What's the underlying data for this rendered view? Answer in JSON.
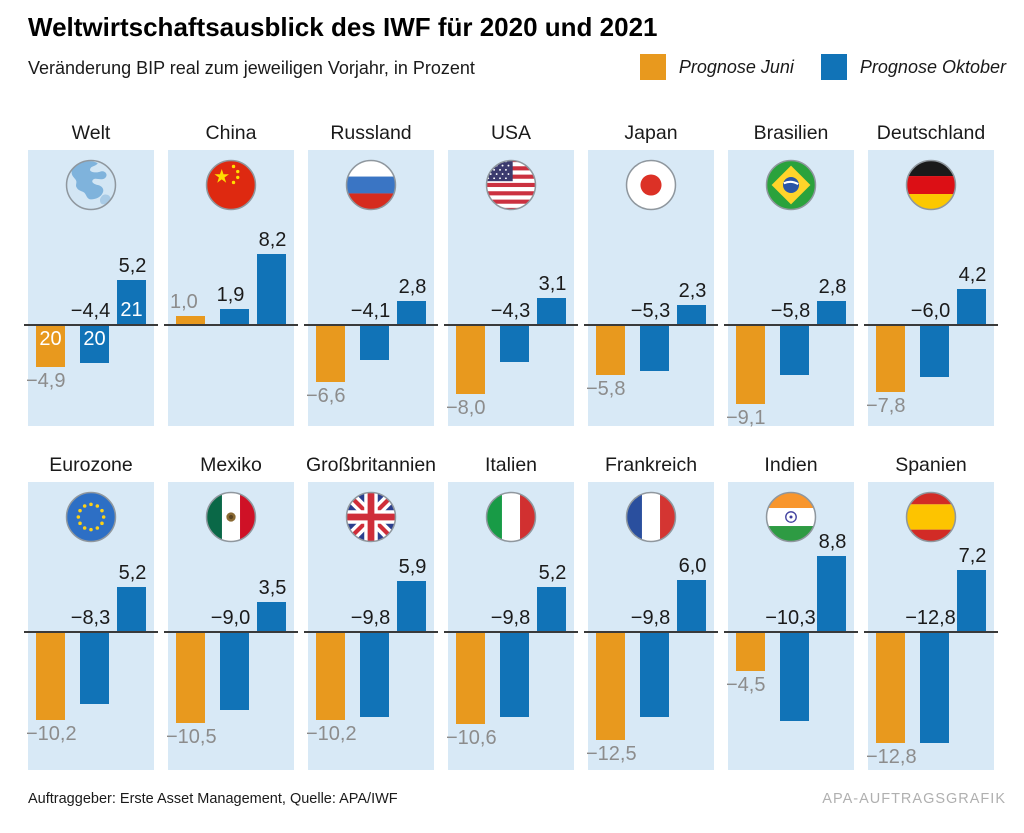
{
  "header": {
    "title": "Weltwirtschaftsausblick des IWF für 2020 und 2021",
    "subtitle": "Veränderung BIP real zum jeweiligen Vorjahr, in Prozent",
    "legend": [
      {
        "label": "Prognose Juni",
        "color": "#e8991e"
      },
      {
        "label": "Prognose Oktober",
        "color": "#1173b7"
      }
    ]
  },
  "footer": {
    "left": "Auftraggeber: Erste Asset Management, Quelle: APA/IWF",
    "right": "APA-AUFTRAGSGRAFIK"
  },
  "colors": {
    "june": "#e8991e",
    "october": "#1173b7",
    "panel_bg": "#d8e9f6",
    "label_gray": "#8c8c8c",
    "label_dark": "#1a1a1a",
    "baseline": "#3a3a3a"
  },
  "chart_data": {
    "type": "bar",
    "title": "Weltwirtschaftsausblick des IWF für 2020 und 2021",
    "ylabel": "Veränderung BIP real zum jeweiligen Vorjahr, in Prozent",
    "ylim": [
      -13.5,
      9.5
    ],
    "grid": false,
    "legend_position": "top-right",
    "series": [
      {
        "name": "Prognose Juni",
        "year": "2020",
        "color": "#e8991e"
      },
      {
        "name": "Prognose Oktober",
        "year": "2020",
        "color": "#1173b7"
      },
      {
        "name": "Prognose Oktober",
        "year": "2021",
        "color": "#1173b7"
      }
    ],
    "year_bar_labels": [
      "20",
      "20",
      "21"
    ],
    "panels": [
      {
        "country": "Welt",
        "flag": "world",
        "values": [
          -4.9,
          -4.4,
          5.2
        ],
        "labels": [
          "−4,9",
          "−4,4",
          "5,2"
        ],
        "show_year_labels": true
      },
      {
        "country": "China",
        "flag": "china",
        "values": [
          1.0,
          1.9,
          8.2
        ],
        "labels": [
          "1,0",
          "1,9",
          "8,2"
        ],
        "show_year_labels": false
      },
      {
        "country": "Russland",
        "flag": "russia",
        "values": [
          -6.6,
          -4.1,
          2.8
        ],
        "labels": [
          "−6,6",
          "−4,1",
          "2,8"
        ],
        "show_year_labels": false
      },
      {
        "country": "USA",
        "flag": "usa",
        "values": [
          -8.0,
          -4.3,
          3.1
        ],
        "labels": [
          "−8,0",
          "−4,3",
          "3,1"
        ],
        "show_year_labels": false
      },
      {
        "country": "Japan",
        "flag": "japan",
        "values": [
          -5.8,
          -5.3,
          2.3
        ],
        "labels": [
          "−5,8",
          "−5,3",
          "2,3"
        ],
        "show_year_labels": false
      },
      {
        "country": "Brasilien",
        "flag": "brazil",
        "values": [
          -9.1,
          -5.8,
          2.8
        ],
        "labels": [
          "−9,1",
          "−5,8",
          "2,8"
        ],
        "show_year_labels": false
      },
      {
        "country": "Deutschland",
        "flag": "germany",
        "values": [
          -7.8,
          -6.0,
          4.2
        ],
        "labels": [
          "−7,8",
          "−6,0",
          "4,2"
        ],
        "show_year_labels": false
      },
      {
        "country": "Eurozone",
        "flag": "eu",
        "values": [
          -10.2,
          -8.3,
          5.2
        ],
        "labels": [
          "−10,2",
          "−8,3",
          "5,2"
        ],
        "show_year_labels": false
      },
      {
        "country": "Mexiko",
        "flag": "mexico",
        "values": [
          -10.5,
          -9.0,
          3.5
        ],
        "labels": [
          "−10,5",
          "−9,0",
          "3,5"
        ],
        "show_year_labels": false
      },
      {
        "country": "Großbritannien",
        "flag": "uk",
        "values": [
          -10.2,
          -9.8,
          5.9
        ],
        "labels": [
          "−10,2",
          "−9,8",
          "5,9"
        ],
        "show_year_labels": false
      },
      {
        "country": "Italien",
        "flag": "italy",
        "values": [
          -10.6,
          -9.8,
          5.2
        ],
        "labels": [
          "−10,6",
          "−9,8",
          "5,2"
        ],
        "show_year_labels": false
      },
      {
        "country": "Frankreich",
        "flag": "france",
        "values": [
          -12.5,
          -9.8,
          6.0
        ],
        "labels": [
          "−12,5",
          "−9,8",
          "6,0"
        ],
        "show_year_labels": false
      },
      {
        "country": "Indien",
        "flag": "india",
        "values": [
          -4.5,
          -10.3,
          8.8
        ],
        "labels": [
          "−4,5",
          "−10,3",
          "8,8"
        ],
        "show_year_labels": false
      },
      {
        "country": "Spanien",
        "flag": "spain",
        "values": [
          -12.8,
          -12.8,
          7.2
        ],
        "labels": [
          "−12,8",
          "−12,8",
          "7,2"
        ],
        "show_year_labels": false
      }
    ]
  }
}
